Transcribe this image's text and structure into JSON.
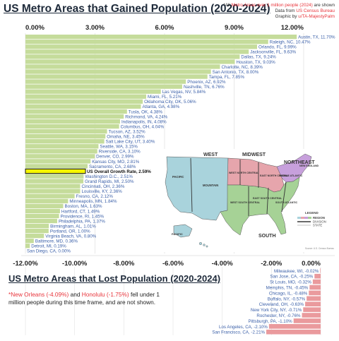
{
  "title": "US Metro Areas that Gained Population (2020-2024)",
  "note": {
    "line1_a": "*All ",
    "line1_b": "Metro Areas over 1 million people (2024)",
    "line1_c": " are shown",
    "line2_a": "Data from ",
    "line2_b": "US Census Bureau",
    "line3_a": "Graphic by ",
    "line3_b": "u/TA-MajestyPalm"
  },
  "lost": {
    "title": "US Metro Areas that Lost Population (2020-2024)",
    "note_red1": "*New Orleans (-4.09%)",
    "note_and": " and ",
    "note_red2": "Honolulu (-1.75%)",
    "note_rest": " fell under 1 million people during this time frame, and are not shown."
  },
  "map": {
    "regions": [
      "WEST",
      "MIDWEST",
      "NORTHEAST",
      "SOUTH"
    ],
    "divisions": [
      "PACIFIC",
      "MOUNTAIN",
      "WEST NORTH CENTRAL",
      "EAST NORTH CENTRAL",
      "NEW ENGLAND",
      "MIDDLE ATLANTIC",
      "WEST SOUTH CENTRAL",
      "EAST SOUTH CENTRAL",
      "SOUTH ATLANTIC"
    ],
    "inset_label": "PACIFIC",
    "legend_title": "LEGEND",
    "legend_region": "REGION",
    "legend_division": "DIVISION",
    "legend_state": "STATE",
    "source": "Source: U.S. Census Bureau",
    "colors": {
      "west": "#a9d3dc",
      "midwest": "#e6a5ac",
      "northeast": "#c7a0dc",
      "south": "#a6d296"
    }
  },
  "chart_data": [
    {
      "type": "bar",
      "orientation": "horizontal",
      "title": "US Metro Areas that Gained Population (2020-2024)",
      "unit": "%",
      "xlim": [
        0,
        12
      ],
      "xticks": [
        "0.00%",
        "3.00%",
        "6.00%",
        "9.00%",
        "12.00%"
      ],
      "grid": true,
      "colors": {
        "bar": "#c5dc9b",
        "lost_bar": "#ea9a9d",
        "label": "#3a5fa8",
        "us_highlight": "#f5f500"
      },
      "categories": [
        "Austin, TX",
        "Raleigh, NC",
        "Orlando, FL",
        "Jacksonville, FL",
        "Dallas, TX",
        "Houston, TX",
        "Charlotte, NC",
        "San Antonio, TX",
        "Tampa, FL",
        "Phoenix, AZ",
        "Nashville, TN",
        "Las Vegas, NV",
        "Miami, FL",
        "Oklahoma City, OK",
        "Atlanta, GA",
        "Tulsa, OK",
        "Richmond, VA",
        "Indianapolis, IN",
        "Columbus, OH",
        "Tucson, AZ",
        "Omaha, NE",
        "Salt Lake City, UT",
        "Seattle, WA",
        "Riverside, CA",
        "Denver, CO",
        "Kansas City, MO",
        "Sacramento, CA",
        "US Overall Growth Rate",
        "Washington D.C.",
        "Grand Rapids, MI",
        "Cincinnati, OH",
        "Louisville, KY",
        "Fresno, CA",
        "Minneapolis, MN",
        "Boston, MA",
        "Hartford, CT",
        "Providence, RI",
        "Philadelphia, PA",
        "Birmingham, AL",
        "Portland, OR",
        "Virginia Beach, VA",
        "Baltimore, MD",
        "Detroit, MI",
        "San Diego, CA"
      ],
      "values": [
        11.7,
        10.47,
        9.99,
        9.63,
        9.24,
        9.03,
        8.39,
        8.0,
        7.85,
        6.92,
        6.76,
        5.84,
        5.21,
        5.06,
        4.98,
        4.38,
        4.24,
        4.08,
        4.04,
        3.52,
        3.45,
        3.4,
        3.15,
        3.1,
        2.99,
        2.81,
        2.68,
        2.59,
        2.51,
        2.5,
        2.36,
        2.36,
        2.12,
        1.84,
        1.63,
        1.49,
        1.45,
        1.37,
        1.01,
        1.0,
        0.8,
        0.36,
        0.19,
        0.0
      ],
      "labels": [
        "Austin, TX, 11.70%",
        "Raleigh, NC, 10.47%",
        "Orlando, FL, 9.99%",
        "Jacksonville, FL, 9.63%",
        "Dallas, TX, 9.24%",
        "Houston, TX, 9.03%",
        "Charlotte, NC, 8.39%",
        "San Antonio, TX, 8.00%",
        "Tampa, FL, 7.85%",
        "Phoenix, AZ, 6.92%",
        "Nashville, TN, 6.76%",
        "Las Vegas, NV, 5.84%",
        "Miami, FL, 5.21%",
        "Oklahoma City, OK, 5.06%",
        "Atlanta, GA, 4.98%",
        "Tusla, OK, 4.38%",
        "Richmond, VA, 4.24%",
        "Indianapolis, IN, 4.08%",
        "Columbus, OH, 4.04%",
        "Tucson, AZ, 3.52%",
        "Omaha, NE, 3.45%",
        "Salt Lake City, UT, 3.40%",
        "Seattle, WA, 3.15%",
        "Riverside, CA, 3.10%",
        "Denver, CO, 2.99%",
        "Kansas City, MO, 2.81%",
        "Sacramento, CA, 2.68%",
        "US Overall Growth Rate, 2.59%",
        "Washington D.C., 2.51%",
        "Grand Rapids, MI, 2.50%",
        "Cincinnati, OH, 2.36%",
        "Louisville, KY, 2.36%",
        "Fresno, CA, 2.12%",
        "Minneapolis, MN, 1.84%",
        "Boston, MA, 1.63%",
        "Hartford, CT, 1.49%",
        "Providence, RI, 1.45%",
        "Philadelphia, PA, 1.37%",
        "Birmingham, AL, 1.01%",
        "Portland, OR, 1.00%",
        "Virginia Beach, VA, 0.80%",
        "Baltimore, MD, 0.36%",
        "Detroit, MI, 0.19%",
        "San Diego, CA, 0.00%"
      ],
      "bar_colors": [
        "green",
        "green",
        "green",
        "green",
        "green",
        "green",
        "green",
        "green",
        "green",
        "green",
        "green",
        "green",
        "green",
        "green",
        "green",
        "green",
        "green",
        "green",
        "green",
        "green",
        "green",
        "green",
        "green",
        "green",
        "green",
        "green",
        "green",
        "yellow",
        "green",
        "green",
        "green",
        "green",
        "green",
        "green",
        "green",
        "green",
        "green",
        "green",
        "green",
        "green",
        "green",
        "green",
        "green",
        "green"
      ],
      "bar_region_hint": [
        "south",
        "south",
        "south",
        "south",
        "south",
        "south",
        "south",
        "south",
        "south",
        "west",
        "south",
        "west",
        "south",
        "south",
        "south",
        "south",
        "south",
        "midwest",
        "midwest",
        "west",
        "midwest",
        "west",
        "west",
        "west",
        "west",
        "midwest",
        "west",
        "us",
        "south",
        "midwest",
        "midwest",
        "south",
        "west",
        "midwest",
        "northeast",
        "northeast",
        "northeast",
        "northeast",
        "south",
        "west",
        "south",
        "south",
        "midwest",
        "west"
      ]
    },
    {
      "type": "bar",
      "orientation": "horizontal",
      "title": "US Metro Areas that Lost Population (2020-2024)",
      "unit": "%",
      "xlim": [
        -12,
        0
      ],
      "xticks": [
        "-12.00%",
        "-10.00%",
        "-8.00%",
        "-6.00%",
        "-4.00%",
        "-2.00%",
        "0.00%"
      ],
      "categories": [
        "Milwaukee, WI",
        "San Jose, CA",
        "St Louis, MO",
        "Memphis, TN",
        "Chicago, IL",
        "Buffalo, NY",
        "Cleveland, OH",
        "New York City, NY",
        "Rochester, NY",
        "Pittsburgh, PA",
        "Los Angeles, CA",
        "San Francisco, CA"
      ],
      "values": [
        -0.02,
        -0.25,
        -0.32,
        -0.45,
        -0.48,
        -0.57,
        -0.63,
        -0.71,
        -0.76,
        -1.1,
        -2.1,
        -2.21
      ],
      "labels": [
        "Milwaukee, WI, -0.02%",
        "San Jose, CA, -0.25%",
        "St Louis, MO, -0.32%",
        "Memphis, TN, -0.45%",
        "Chicago, IL, -0.48%",
        "Buffalo, NY, -0.57%",
        "Cleveland, OH, -0.63%",
        "New York City, NY, -0.71%",
        "Rochester, NY, -0.76%",
        "Pittsburgh, PA, -1.10%",
        "Los Angeles, CA, -2.10%",
        "San Francisco, CA, -2.21%"
      ]
    }
  ]
}
